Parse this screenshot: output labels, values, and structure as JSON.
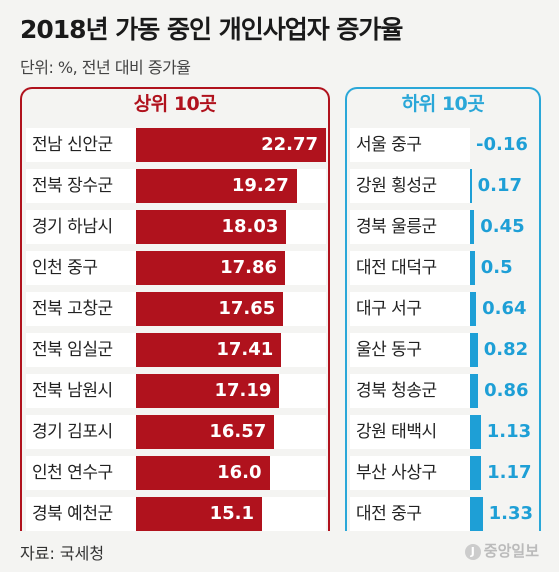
{
  "title": "2018년 가동 중인 개인사업자 증가율",
  "subtitle": "단위: %, 전년 대비 증가율",
  "source": "자료: 국세청",
  "logo": "중앙일보",
  "colors": {
    "top": "#b0121d",
    "bottom": "#1e9fd6"
  },
  "chart_data": [
    {
      "type": "bar",
      "title": "상위 10곳",
      "categories": [
        "전남 신안군",
        "전북 장수군",
        "경기 하남시",
        "인천 중구",
        "전북 고창군",
        "전북 임실군",
        "전북 남원시",
        "경기 김포시",
        "인천 연수구",
        "경북 예천군"
      ],
      "values": [
        22.77,
        19.27,
        18.03,
        17.86,
        17.65,
        17.41,
        17.19,
        16.57,
        16.0,
        15.1
      ],
      "labels": [
        "22.77",
        "19.27",
        "18.03",
        "17.86",
        "17.65",
        "17.41",
        "17.19",
        "16.57",
        "16.0",
        "15.1"
      ]
    },
    {
      "type": "bar",
      "title": "하위 10곳",
      "categories": [
        "서울 중구",
        "강원 횡성군",
        "경북 울릉군",
        "대전 대덕구",
        "대구 서구",
        "울산 동구",
        "경북 청송군",
        "강원 태백시",
        "부산 사상구",
        "대전 중구"
      ],
      "values": [
        -0.16,
        0.17,
        0.45,
        0.5,
        0.64,
        0.82,
        0.86,
        1.13,
        1.17,
        1.33
      ],
      "labels": [
        "-0.16",
        "0.17",
        "0.45",
        "0.5",
        "0.64",
        "0.82",
        "0.86",
        "1.13",
        "1.17",
        "1.33"
      ]
    }
  ]
}
